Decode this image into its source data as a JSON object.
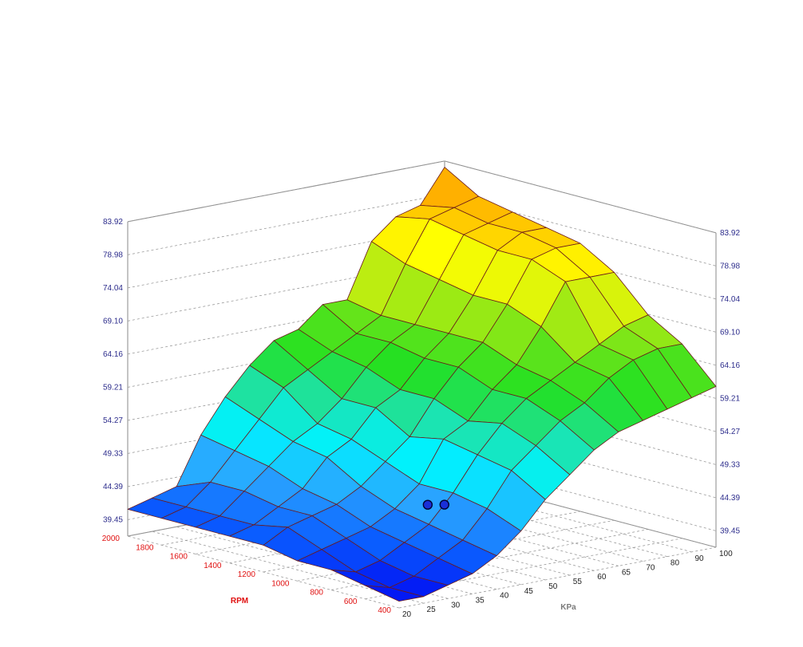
{
  "chart_data": {
    "type": "surface",
    "xlabel": "KPa",
    "ylabel": "RPM",
    "x_ticks": [
      20,
      25,
      30,
      35,
      40,
      45,
      50,
      55,
      60,
      65,
      70,
      80,
      90,
      100
    ],
    "y_ticks": [
      400,
      600,
      800,
      1000,
      1200,
      1400,
      1600,
      1800,
      2000
    ],
    "z_ticks": [
      "39.45",
      "44.39",
      "49.33",
      "54.27",
      "59.21",
      "64.16",
      "69.10",
      "74.04",
      "78.98",
      "83.92"
    ],
    "zlim": [
      37,
      83.92
    ],
    "z": [
      [
        38,
        38,
        39,
        40,
        42,
        45,
        49,
        52,
        55,
        57,
        58,
        59,
        60,
        61
      ],
      [
        39,
        38,
        39,
        41,
        43,
        47,
        52,
        55,
        58,
        60,
        63,
        65,
        66,
        66
      ],
      [
        40,
        39,
        40,
        42,
        44,
        48,
        53,
        57,
        60,
        62,
        64,
        66,
        68,
        69
      ],
      [
        40,
        41,
        42,
        43,
        45,
        48,
        54,
        56,
        60,
        63,
        68,
        74,
        74,
        74
      ],
      [
        41,
        43,
        44,
        45,
        47,
        50,
        53,
        58,
        62,
        65,
        70,
        76,
        77,
        77
      ],
      [
        41,
        42,
        44,
        46,
        50,
        52,
        56,
        58,
        62,
        65,
        70,
        76,
        78,
        78
      ],
      [
        41,
        42,
        45,
        48,
        51,
        53,
        56,
        60,
        63,
        65,
        71,
        77,
        78,
        79
      ],
      [
        41,
        42,
        45,
        49,
        53,
        57,
        59,
        61,
        63,
        65,
        72,
        78,
        79,
        80
      ],
      [
        41,
        42,
        43,
        50,
        55,
        59,
        62,
        63,
        66,
        66,
        74,
        77,
        78,
        83
      ]
    ],
    "colorscale": [
      "#0000f0",
      "#0a5cff",
      "#2aa6ff",
      "#00f2ff",
      "#1ee2a8",
      "#22e022",
      "#66e41a",
      "#c8ee10",
      "#ffff00",
      "#ffb800",
      "#ff8800"
    ],
    "markers": [
      {
        "rpm": 710,
        "kpa": 40.5,
        "value": 48
      },
      {
        "rpm": 670,
        "kpa": 43,
        "value": 48
      }
    ],
    "grid": true
  }
}
